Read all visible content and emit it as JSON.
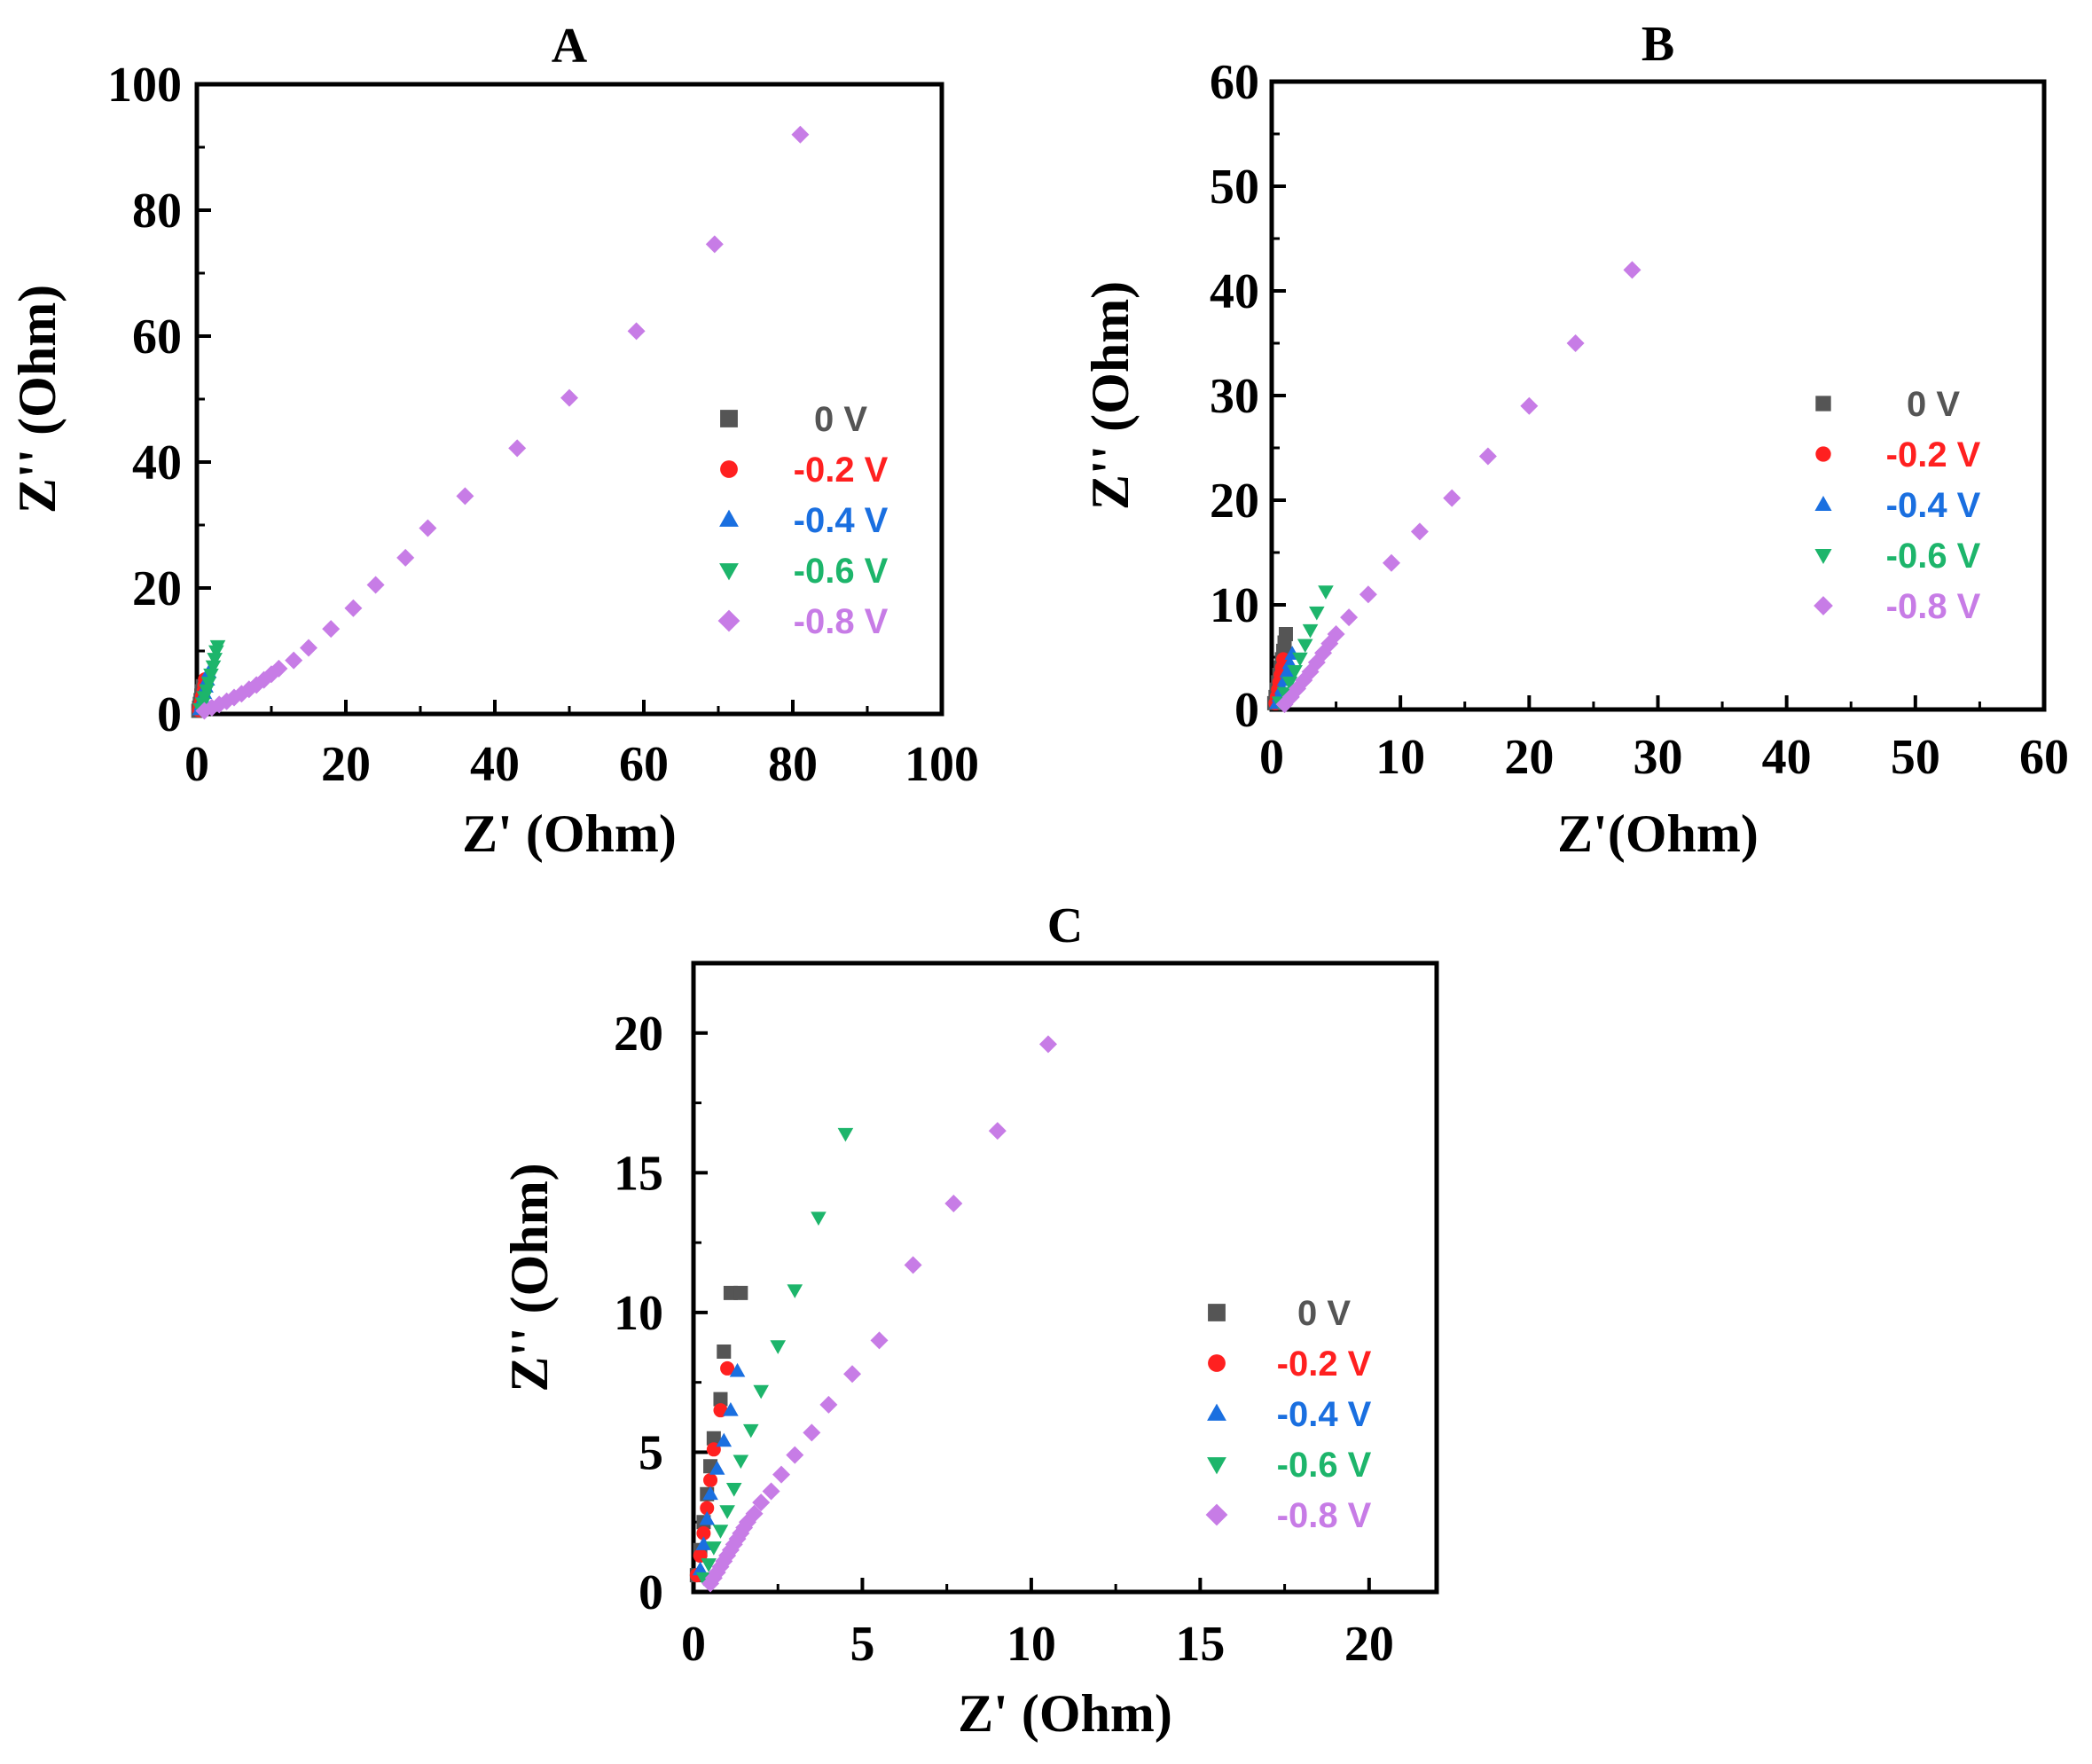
{
  "chart_data": [
    {
      "type": "scatter",
      "title": "A",
      "xlabel": "Z' (Ohm)",
      "ylabel": "Z'' (Ohm)",
      "xlim": [
        0,
        100
      ],
      "ylim": [
        0,
        100
      ],
      "xticks": [
        0,
        20,
        40,
        60,
        80,
        100
      ],
      "yticks": [
        0,
        20,
        40,
        60,
        80,
        100
      ],
      "xtick_labels": [
        "0",
        "20",
        "40",
        "60",
        "80",
        "100"
      ],
      "ytick_labels": [
        "0",
        "20",
        "40",
        "60",
        "80",
        "100"
      ],
      "legend_position": "center-right",
      "series": [
        {
          "name": "0 V",
          "color": "#555555",
          "marker": "square",
          "x": [
            0.2,
            0.3,
            0.4,
            0.5,
            0.6,
            0.7,
            0.8
          ],
          "y": [
            0.5,
            1.0,
            1.6,
            2.2,
            2.9,
            3.6,
            4.4
          ]
        },
        {
          "name": "-0.2 V",
          "color": "#ff2020",
          "marker": "circle",
          "x": [
            0.3,
            0.4,
            0.6,
            0.7,
            0.9,
            1.0,
            1.1
          ],
          "y": [
            0.6,
            1.3,
            2.0,
            2.8,
            3.6,
            4.5,
            5.5
          ]
        },
        {
          "name": "-0.4 V",
          "color": "#1a6fe0",
          "marker": "triangle-up",
          "x": [
            0.4,
            0.6,
            0.8,
            1.0,
            1.2,
            1.4,
            1.6
          ],
          "y": [
            0.7,
            1.5,
            2.4,
            3.3,
            4.3,
            5.4,
            6.6
          ]
        },
        {
          "name": "-0.6 V",
          "color": "#1db56b",
          "marker": "triangle-down",
          "x": [
            0.5,
            0.8,
            1.0,
            1.3,
            1.6,
            1.9,
            2.2,
            2.4,
            2.6,
            2.8
          ],
          "y": [
            0.8,
            1.7,
            2.7,
            3.8,
            5.0,
            6.3,
            7.6,
            8.8,
            10.0,
            10.8
          ]
        },
        {
          "name": "-0.8 V",
          "color": "#c77ce6",
          "marker": "diamond",
          "x": [
            1.0,
            2.0,
            3.0,
            4.0,
            5.0,
            6.0,
            7.0,
            8.0,
            9.0,
            10.0,
            11.0,
            13.0,
            15.0,
            18.0,
            21.0,
            24.0,
            28.0,
            31.0,
            36.0,
            43.0,
            50.0,
            59.0,
            69.5,
            81.0
          ],
          "y": [
            0.5,
            1.0,
            1.5,
            2.0,
            2.6,
            3.2,
            3.9,
            4.6,
            5.4,
            6.3,
            7.2,
            8.5,
            10.5,
            13.5,
            16.8,
            20.5,
            24.8,
            29.5,
            34.6,
            42.2,
            50.2,
            60.8,
            74.6,
            92.0
          ]
        }
      ]
    },
    {
      "type": "scatter",
      "title": "B",
      "xlabel": "Z'(Ohm)",
      "ylabel": "Z'' (Ohm)",
      "xlim": [
        0,
        60
      ],
      "ylim": [
        0,
        60
      ],
      "xticks": [
        0,
        10,
        20,
        30,
        40,
        50,
        60
      ],
      "yticks": [
        0,
        10,
        20,
        30,
        40,
        50,
        60
      ],
      "xtick_labels": [
        "0",
        "10",
        "20",
        "30",
        "40",
        "50",
        "60"
      ],
      "ytick_labels": [
        "0",
        "10",
        "20",
        "30",
        "40",
        "50",
        "60"
      ],
      "legend_position": "center-right",
      "series": [
        {
          "name": "0 V",
          "color": "#555555",
          "marker": "square",
          "x": [
            0.2,
            0.3,
            0.4,
            0.5,
            0.6,
            0.7,
            0.8,
            0.9,
            1.0,
            1.1
          ],
          "y": [
            0.6,
            1.2,
            1.9,
            2.6,
            3.3,
            4.0,
            4.8,
            5.6,
            6.4,
            7.2
          ]
        },
        {
          "name": "-0.2 V",
          "color": "#ff2020",
          "marker": "circle",
          "x": [
            0.3,
            0.4,
            0.5,
            0.6,
            0.7,
            0.8,
            0.9
          ],
          "y": [
            0.6,
            1.2,
            1.9,
            2.6,
            3.3,
            4.0,
            4.8
          ]
        },
        {
          "name": "-0.4 V",
          "color": "#1a6fe0",
          "marker": "triangle-up",
          "x": [
            0.4,
            0.6,
            0.8,
            1.0,
            1.2,
            1.4,
            1.6
          ],
          "y": [
            0.6,
            1.3,
            2.0,
            2.8,
            3.6,
            4.4,
            5.3
          ]
        },
        {
          "name": "-0.6 V",
          "color": "#1db56b",
          "marker": "triangle-down",
          "x": [
            0.6,
            1.0,
            1.4,
            1.8,
            2.2,
            2.6,
            3.0,
            3.5,
            4.2
          ],
          "y": [
            0.7,
            1.6,
            2.6,
            3.7,
            4.9,
            6.2,
            7.6,
            9.3,
            11.3
          ]
        },
        {
          "name": "-0.8 V",
          "color": "#c77ce6",
          "marker": "diamond",
          "x": [
            1.0,
            1.5,
            2.0,
            2.5,
            3.0,
            3.5,
            4.0,
            4.5,
            5.0,
            6.0,
            7.5,
            9.3,
            11.5,
            14.0,
            16.8,
            20.0,
            23.6,
            28.0
          ],
          "y": [
            0.5,
            1.2,
            2.0,
            2.8,
            3.6,
            4.5,
            5.4,
            6.3,
            7.2,
            8.8,
            11.0,
            14.0,
            17.0,
            20.2,
            24.2,
            29.0,
            35.0,
            42.0
          ]
        }
      ]
    },
    {
      "type": "scatter",
      "title": "C",
      "xlabel": "Z' (Ohm)",
      "ylabel": "Z'' (Ohm)",
      "xlim": [
        0,
        22
      ],
      "ylim": [
        0,
        22.5
      ],
      "xticks": [
        0,
        5,
        10,
        15,
        20
      ],
      "yticks": [
        0,
        5,
        10,
        15,
        20
      ],
      "xtick_labels": [
        "0",
        "5",
        "10",
        "15",
        "20"
      ],
      "ytick_labels": [
        "0",
        "5",
        "10",
        "15",
        "20"
      ],
      "legend_position": "center-right",
      "series": [
        {
          "name": "0 V",
          "color": "#555555",
          "marker": "square",
          "x": [
            0.1,
            0.2,
            0.3,
            0.4,
            0.5,
            0.6,
            0.8,
            0.9,
            1.1,
            1.4
          ],
          "y": [
            0.6,
            1.5,
            2.5,
            3.5,
            4.5,
            5.5,
            6.9,
            8.6,
            10.7,
            10.7
          ]
        },
        {
          "name": "-0.2 V",
          "color": "#ff2020",
          "marker": "circle",
          "x": [
            0.1,
            0.2,
            0.3,
            0.4,
            0.5,
            0.6,
            0.8,
            1.0
          ],
          "y": [
            0.6,
            1.3,
            2.1,
            3.0,
            4.0,
            5.1,
            6.5,
            8.0
          ]
        },
        {
          "name": "-0.4 V",
          "color": "#1a6fe0",
          "marker": "triangle-up",
          "x": [
            0.2,
            0.3,
            0.4,
            0.5,
            0.7,
            0.9,
            1.1,
            1.3
          ],
          "y": [
            0.8,
            1.7,
            2.6,
            3.5,
            4.4,
            5.4,
            6.5,
            7.9
          ]
        },
        {
          "name": "-0.6 V",
          "color": "#1db56b",
          "marker": "triangle-down",
          "x": [
            0.3,
            0.45,
            0.6,
            0.8,
            1.0,
            1.2,
            1.4,
            1.7,
            2.0,
            2.5,
            3.0,
            3.7,
            4.5
          ],
          "y": [
            0.5,
            1.0,
            1.6,
            2.2,
            2.9,
            3.7,
            4.7,
            5.8,
            7.2,
            8.8,
            10.8,
            13.4,
            16.4
          ]
        },
        {
          "name": "-0.8 V",
          "color": "#c77ce6",
          "marker": "diamond",
          "x": [
            0.5,
            0.6,
            0.7,
            0.8,
            0.9,
            1.0,
            1.1,
            1.2,
            1.3,
            1.4,
            1.5,
            1.6,
            1.8,
            2.0,
            2.3,
            2.6,
            3.0,
            3.5,
            4.0,
            4.7,
            5.5,
            6.5,
            7.7,
            9.0,
            10.5
          ],
          "y": [
            0.3,
            0.5,
            0.7,
            0.9,
            1.1,
            1.3,
            1.5,
            1.7,
            1.9,
            2.1,
            2.3,
            2.5,
            2.8,
            3.2,
            3.6,
            4.2,
            4.9,
            5.7,
            6.7,
            7.8,
            9.0,
            11.7,
            13.9,
            16.5,
            19.6
          ]
        }
      ]
    }
  ]
}
